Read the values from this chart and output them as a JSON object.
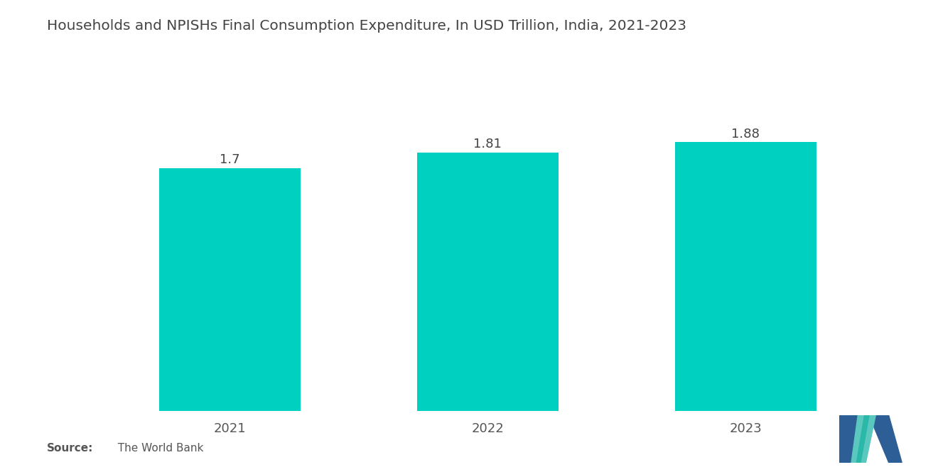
{
  "title": "Households and NPISHs Final Consumption Expenditure, In USD Trillion, India, 2021-2023",
  "categories": [
    "2021",
    "2022",
    "2023"
  ],
  "values": [
    1.7,
    1.81,
    1.88
  ],
  "bar_color": "#00D0C0",
  "background_color": "#ffffff",
  "title_fontsize": 14.5,
  "label_fontsize": 13,
  "value_fontsize": 13,
  "source_bold": "Source:",
  "source_normal": "  The World Bank",
  "ylim": [
    0,
    2.05
  ],
  "bar_width": 0.55
}
